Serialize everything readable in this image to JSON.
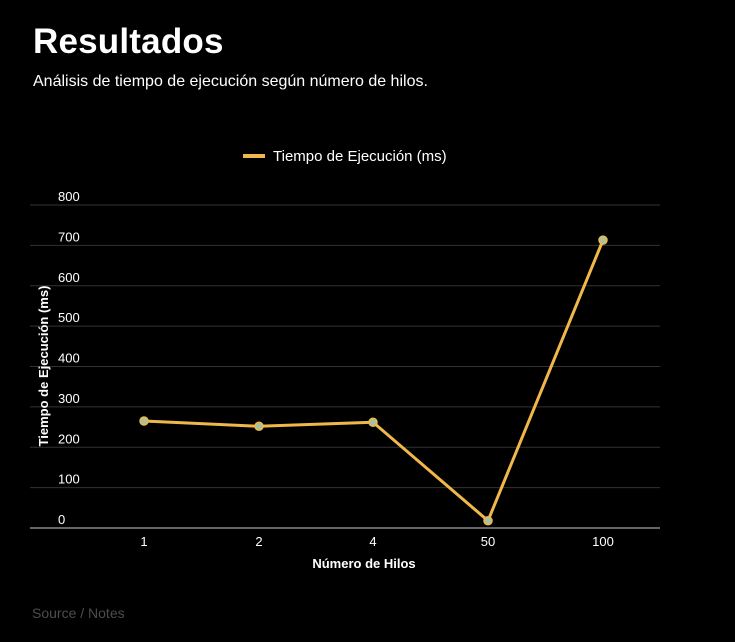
{
  "header": {
    "title": "Resultados",
    "subtitle": "Análisis de tiempo de ejecución según número de hilos."
  },
  "footer": {
    "text": "Source / Notes"
  },
  "colors": {
    "background": "#000000",
    "series_line": "#f0b84a",
    "point_fill": "#a7c4a0",
    "gridline": "#333333",
    "axis": "#cccccc",
    "text": "#ffffff",
    "footer_text": "#4d4d4d"
  },
  "chart_data": {
    "type": "line",
    "title": "",
    "xlabel": "Número de Hilos",
    "ylabel": "Tiempo de Ejecución (ms)",
    "categories": [
      "1",
      "2",
      "4",
      "50",
      "100"
    ],
    "series": [
      {
        "name": "Tiempo de Ejecución (ms)",
        "values": [
          265,
          252,
          262,
          18,
          713
        ]
      }
    ],
    "ylim": [
      0,
      800
    ],
    "yticks": [
      0,
      100,
      200,
      300,
      400,
      500,
      600,
      700,
      800
    ],
    "legend_position": "top",
    "grid": true
  }
}
